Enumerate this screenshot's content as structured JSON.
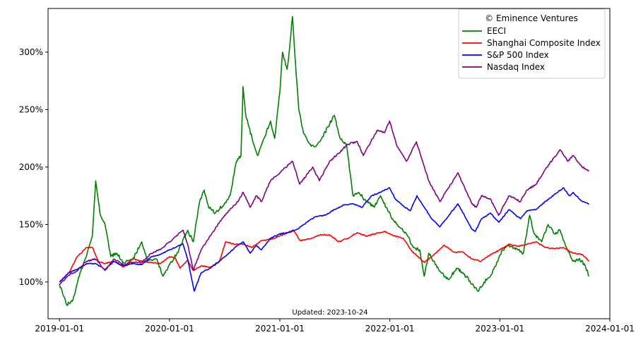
{
  "chart_data": {
    "type": "line",
    "legend_title": "© Eminence Ventures",
    "annotation": "Updated: 2023-10-24",
    "legend_placement": "top-right",
    "grid": false,
    "xlim": [
      "2018-11-24",
      "2024-01-01"
    ],
    "ylim": [
      68,
      338
    ],
    "x_ticks": [
      "2019-01-01",
      "2020-01-01",
      "2021-01-01",
      "2022-01-01",
      "2023-01-01",
      "2024-01-01"
    ],
    "y_ticks": [
      100,
      150,
      200,
      250,
      300
    ],
    "y_tick_labels": [
      "100%",
      "150%",
      "200%",
      "250%",
      "300%"
    ],
    "series": [
      {
        "name": "EECI",
        "color": "#008000",
        "points": [
          [
            "2019-01-01",
            98
          ],
          [
            "2019-01-25",
            80
          ],
          [
            "2019-02-15",
            85
          ],
          [
            "2019-03-10",
            108
          ],
          [
            "2019-04-01",
            123
          ],
          [
            "2019-04-20",
            140
          ],
          [
            "2019-05-01",
            188
          ],
          [
            "2019-05-15",
            160
          ],
          [
            "2019-06-01",
            150
          ],
          [
            "2019-06-20",
            122
          ],
          [
            "2019-07-10",
            125
          ],
          [
            "2019-08-01",
            117
          ],
          [
            "2019-09-01",
            120
          ],
          [
            "2019-10-01",
            135
          ],
          [
            "2019-10-20",
            118
          ],
          [
            "2019-11-20",
            120
          ],
          [
            "2019-12-10",
            105
          ],
          [
            "2020-01-01",
            115
          ],
          [
            "2020-02-01",
            128
          ],
          [
            "2020-03-01",
            145
          ],
          [
            "2020-03-20",
            135
          ],
          [
            "2020-04-10",
            170
          ],
          [
            "2020-04-25",
            180
          ],
          [
            "2020-05-10",
            165
          ],
          [
            "2020-06-01",
            160
          ],
          [
            "2020-07-01",
            168
          ],
          [
            "2020-07-20",
            175
          ],
          [
            "2020-08-10",
            205
          ],
          [
            "2020-08-25",
            210
          ],
          [
            "2020-09-01",
            270
          ],
          [
            "2020-09-10",
            245
          ],
          [
            "2020-10-01",
            225
          ],
          [
            "2020-10-20",
            210
          ],
          [
            "2020-11-10",
            225
          ],
          [
            "2020-12-01",
            240
          ],
          [
            "2020-12-15",
            225
          ],
          [
            "2021-01-01",
            265
          ],
          [
            "2021-01-10",
            300
          ],
          [
            "2021-01-25",
            285
          ],
          [
            "2021-02-01",
            300
          ],
          [
            "2021-02-12",
            331
          ],
          [
            "2021-02-22",
            290
          ],
          [
            "2021-03-05",
            250
          ],
          [
            "2021-03-20",
            230
          ],
          [
            "2021-04-10",
            220
          ],
          [
            "2021-05-01",
            218
          ],
          [
            "2021-05-20",
            225
          ],
          [
            "2021-06-10",
            235
          ],
          [
            "2021-07-01",
            245
          ],
          [
            "2021-07-20",
            225
          ],
          [
            "2021-08-10",
            220
          ],
          [
            "2021-09-01",
            175
          ],
          [
            "2021-09-20",
            178
          ],
          [
            "2021-10-15",
            170
          ],
          [
            "2021-11-10",
            165
          ],
          [
            "2021-12-01",
            175
          ],
          [
            "2021-12-20",
            165
          ],
          [
            "2022-01-10",
            155
          ],
          [
            "2022-02-01",
            148
          ],
          [
            "2022-03-01",
            140
          ],
          [
            "2022-03-20",
            130
          ],
          [
            "2022-04-10",
            128
          ],
          [
            "2022-04-25",
            105
          ],
          [
            "2022-05-10",
            125
          ],
          [
            "2022-06-01",
            115
          ],
          [
            "2022-06-20",
            108
          ],
          [
            "2022-07-15",
            102
          ],
          [
            "2022-08-10",
            112
          ],
          [
            "2022-09-01",
            108
          ],
          [
            "2022-10-01",
            98
          ],
          [
            "2022-10-20",
            92
          ],
          [
            "2022-11-10",
            100
          ],
          [
            "2022-12-01",
            105
          ],
          [
            "2022-12-20",
            115
          ],
          [
            "2023-01-10",
            128
          ],
          [
            "2023-02-01",
            132
          ],
          [
            "2023-03-01",
            128
          ],
          [
            "2023-03-20",
            125
          ],
          [
            "2023-04-10",
            158
          ],
          [
            "2023-04-25",
            142
          ],
          [
            "2023-05-20",
            135
          ],
          [
            "2023-06-10",
            150
          ],
          [
            "2023-07-01",
            142
          ],
          [
            "2023-07-20",
            145
          ],
          [
            "2023-08-10",
            130
          ],
          [
            "2023-09-01",
            118
          ],
          [
            "2023-09-20",
            120
          ],
          [
            "2023-10-10",
            115
          ],
          [
            "2023-10-24",
            105
          ]
        ]
      },
      {
        "name": "Shanghai Composite Index",
        "color": "#ff0000",
        "points": [
          [
            "2019-01-01",
            100
          ],
          [
            "2019-02-01",
            108
          ],
          [
            "2019-03-01",
            122
          ],
          [
            "2019-04-01",
            130
          ],
          [
            "2019-04-20",
            130
          ],
          [
            "2019-05-10",
            118
          ],
          [
            "2019-06-01",
            116
          ],
          [
            "2019-07-01",
            118
          ],
          [
            "2019-08-01",
            113
          ],
          [
            "2019-09-01",
            120
          ],
          [
            "2019-10-01",
            118
          ],
          [
            "2019-11-01",
            117
          ],
          [
            "2019-12-01",
            116
          ],
          [
            "2020-01-01",
            122
          ],
          [
            "2020-01-20",
            121
          ],
          [
            "2020-02-05",
            112
          ],
          [
            "2020-03-01",
            119
          ],
          [
            "2020-03-20",
            110
          ],
          [
            "2020-04-15",
            114
          ],
          [
            "2020-05-15",
            113
          ],
          [
            "2020-06-15",
            118
          ],
          [
            "2020-07-05",
            135
          ],
          [
            "2020-08-01",
            133
          ],
          [
            "2020-09-01",
            133
          ],
          [
            "2020-10-01",
            130
          ],
          [
            "2020-11-01",
            136
          ],
          [
            "2020-12-01",
            137
          ],
          [
            "2021-01-01",
            140
          ],
          [
            "2021-02-15",
            145
          ],
          [
            "2021-03-10",
            136
          ],
          [
            "2021-04-15",
            138
          ],
          [
            "2021-05-15",
            141
          ],
          [
            "2021-06-15",
            141
          ],
          [
            "2021-07-15",
            135
          ],
          [
            "2021-08-15",
            138
          ],
          [
            "2021-09-15",
            143
          ],
          [
            "2021-10-15",
            140
          ],
          [
            "2021-11-15",
            142
          ],
          [
            "2021-12-15",
            144
          ],
          [
            "2022-01-15",
            140
          ],
          [
            "2022-02-15",
            138
          ],
          [
            "2022-03-15",
            127
          ],
          [
            "2022-04-25",
            117
          ],
          [
            "2022-05-20",
            122
          ],
          [
            "2022-07-01",
            132
          ],
          [
            "2022-08-01",
            126
          ],
          [
            "2022-09-01",
            126
          ],
          [
            "2022-10-01",
            120
          ],
          [
            "2022-10-31",
            118
          ],
          [
            "2022-12-01",
            124
          ],
          [
            "2023-01-01",
            128
          ],
          [
            "2023-02-01",
            133
          ],
          [
            "2023-03-01",
            131
          ],
          [
            "2023-04-01",
            133
          ],
          [
            "2023-05-01",
            135
          ],
          [
            "2023-06-01",
            130
          ],
          [
            "2023-07-01",
            129
          ],
          [
            "2023-08-01",
            130
          ],
          [
            "2023-09-01",
            125
          ],
          [
            "2023-10-01",
            124
          ],
          [
            "2023-10-24",
            118
          ]
        ]
      },
      {
        "name": "S&P 500 Index",
        "color": "#0000ff",
        "points": [
          [
            "2019-01-01",
            100
          ],
          [
            "2019-02-01",
            108
          ],
          [
            "2019-03-01",
            111
          ],
          [
            "2019-04-01",
            116
          ],
          [
            "2019-05-01",
            116
          ],
          [
            "2019-06-01",
            111
          ],
          [
            "2019-07-01",
            118
          ],
          [
            "2019-08-01",
            114
          ],
          [
            "2019-09-01",
            116
          ],
          [
            "2019-10-01",
            115
          ],
          [
            "2019-11-01",
            122
          ],
          [
            "2019-12-01",
            124
          ],
          [
            "2020-01-01",
            128
          ],
          [
            "2020-02-15",
            133
          ],
          [
            "2020-03-01",
            120
          ],
          [
            "2020-03-23",
            92
          ],
          [
            "2020-04-15",
            108
          ],
          [
            "2020-05-15",
            112
          ],
          [
            "2020-06-15",
            118
          ],
          [
            "2020-07-15",
            125
          ],
          [
            "2020-08-15",
            132
          ],
          [
            "2020-09-01",
            135
          ],
          [
            "2020-09-25",
            125
          ],
          [
            "2020-10-15",
            132
          ],
          [
            "2020-11-01",
            128
          ],
          [
            "2020-12-01",
            138
          ],
          [
            "2021-01-01",
            142
          ],
          [
            "2021-02-01",
            143
          ],
          [
            "2021-03-01",
            146
          ],
          [
            "2021-04-01",
            152
          ],
          [
            "2021-05-01",
            157
          ],
          [
            "2021-06-01",
            158
          ],
          [
            "2021-07-01",
            163
          ],
          [
            "2021-08-01",
            167
          ],
          [
            "2021-09-01",
            168
          ],
          [
            "2021-10-01",
            165
          ],
          [
            "2021-11-01",
            175
          ],
          [
            "2021-12-01",
            178
          ],
          [
            "2021-12-31",
            182
          ],
          [
            "2022-01-20",
            172
          ],
          [
            "2022-02-20",
            165
          ],
          [
            "2022-03-10",
            162
          ],
          [
            "2022-04-01",
            175
          ],
          [
            "2022-05-20",
            155
          ],
          [
            "2022-06-16",
            148
          ],
          [
            "2022-08-15",
            168
          ],
          [
            "2022-09-30",
            146
          ],
          [
            "2022-10-12",
            144
          ],
          [
            "2022-11-01",
            155
          ],
          [
            "2022-12-01",
            160
          ],
          [
            "2022-12-28",
            152
          ],
          [
            "2023-02-01",
            163
          ],
          [
            "2023-03-10",
            155
          ],
          [
            "2023-04-01",
            162
          ],
          [
            "2023-05-01",
            163
          ],
          [
            "2023-06-01",
            170
          ],
          [
            "2023-07-31",
            182
          ],
          [
            "2023-08-20",
            175
          ],
          [
            "2023-09-01",
            178
          ],
          [
            "2023-10-01",
            170
          ],
          [
            "2023-10-24",
            168
          ]
        ]
      },
      {
        "name": "Nasdaq Index",
        "color": "#800080",
        "points": [
          [
            "2019-01-01",
            98
          ],
          [
            "2019-02-01",
            106
          ],
          [
            "2019-03-01",
            110
          ],
          [
            "2019-04-01",
            118
          ],
          [
            "2019-05-01",
            120
          ],
          [
            "2019-06-01",
            110
          ],
          [
            "2019-07-01",
            120
          ],
          [
            "2019-08-01",
            115
          ],
          [
            "2019-09-01",
            117
          ],
          [
            "2019-10-01",
            117
          ],
          [
            "2019-11-01",
            125
          ],
          [
            "2019-12-01",
            128
          ],
          [
            "2020-01-01",
            135
          ],
          [
            "2020-02-15",
            145
          ],
          [
            "2020-03-01",
            133
          ],
          [
            "2020-03-20",
            110
          ],
          [
            "2020-04-15",
            128
          ],
          [
            "2020-05-15",
            140
          ],
          [
            "2020-06-15",
            152
          ],
          [
            "2020-07-15",
            162
          ],
          [
            "2020-08-15",
            170
          ],
          [
            "2020-09-01",
            178
          ],
          [
            "2020-09-25",
            165
          ],
          [
            "2020-10-15",
            175
          ],
          [
            "2020-11-01",
            170
          ],
          [
            "2020-12-01",
            188
          ],
          [
            "2021-01-01",
            195
          ],
          [
            "2021-02-12",
            205
          ],
          [
            "2021-03-08",
            185
          ],
          [
            "2021-04-20",
            200
          ],
          [
            "2021-05-12",
            188
          ],
          [
            "2021-06-15",
            205
          ],
          [
            "2021-07-15",
            212
          ],
          [
            "2021-08-15",
            220
          ],
          [
            "2021-09-15",
            222
          ],
          [
            "2021-10-05",
            210
          ],
          [
            "2021-11-20",
            232
          ],
          [
            "2021-12-15",
            230
          ],
          [
            "2021-12-31",
            240
          ],
          [
            "2022-01-25",
            218
          ],
          [
            "2022-02-25",
            205
          ],
          [
            "2022-03-30",
            222
          ],
          [
            "2022-05-10",
            188
          ],
          [
            "2022-06-16",
            170
          ],
          [
            "2022-08-15",
            195
          ],
          [
            "2022-09-30",
            168
          ],
          [
            "2022-10-15",
            165
          ],
          [
            "2022-11-01",
            175
          ],
          [
            "2022-12-01",
            172
          ],
          [
            "2022-12-28",
            158
          ],
          [
            "2023-02-01",
            175
          ],
          [
            "2023-03-10",
            170
          ],
          [
            "2023-04-01",
            180
          ],
          [
            "2023-05-01",
            185
          ],
          [
            "2023-06-01",
            198
          ],
          [
            "2023-07-20",
            215
          ],
          [
            "2023-08-15",
            205
          ],
          [
            "2023-09-01",
            210
          ],
          [
            "2023-10-01",
            200
          ],
          [
            "2023-10-24",
            197
          ]
        ]
      }
    ]
  }
}
